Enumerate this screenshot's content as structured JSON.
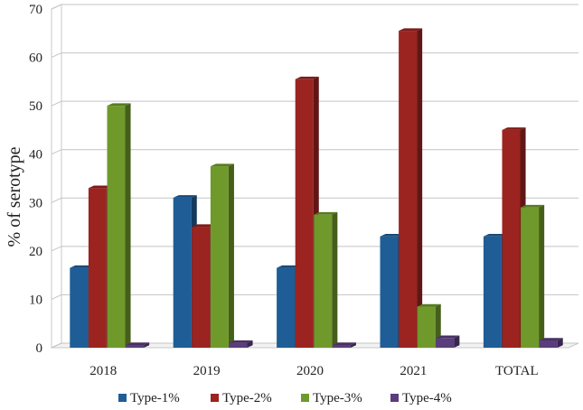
{
  "chart_data": {
    "type": "bar",
    "subtype": "3d-clustered-column",
    "title": "",
    "xlabel": "",
    "ylabel": "% of serotype",
    "ylim": [
      0,
      70
    ],
    "yticks": [
      0,
      10,
      20,
      30,
      40,
      50,
      60,
      70
    ],
    "grid": true,
    "legend_position": "bottom",
    "categories": [
      "2018",
      "2019",
      "2020",
      "2021",
      "TOTAL"
    ],
    "series": [
      {
        "name": "Type-1%",
        "values": [
          16.5,
          31,
          16.5,
          23,
          23
        ],
        "color": "#1f5d96"
      },
      {
        "name": "Type-2%",
        "values": [
          33,
          25,
          55.5,
          65.5,
          45
        ],
        "color": "#9b2320"
      },
      {
        "name": "Type-3%",
        "values": [
          50,
          37.5,
          27.5,
          8.5,
          29
        ],
        "color": "#6f9a2b"
      },
      {
        "name": "Type-4%",
        "values": [
          0,
          1,
          0,
          2,
          1.5
        ],
        "color": "#5a3d7c"
      }
    ]
  }
}
